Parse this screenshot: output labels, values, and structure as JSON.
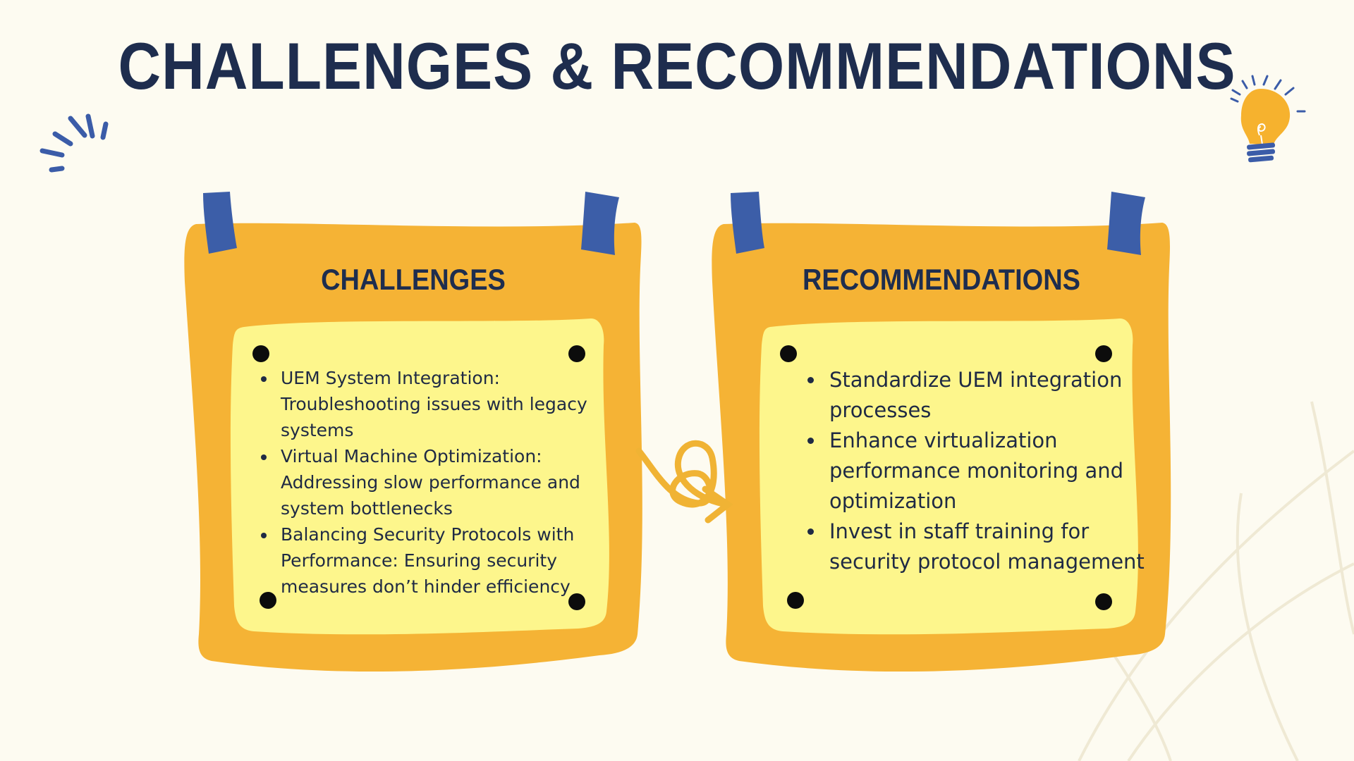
{
  "slide": {
    "title": "CHALLENGES & RECOMMENDATIONS"
  },
  "challenges": {
    "title": "CHALLENGES",
    "items": [
      "UEM System Integration: Troubleshooting issues with legacy systems",
      "Virtual Machine Optimization: Addressing slow performance and system bottlenecks",
      "Balancing Security Protocols with Performance: Ensuring security measures don’t hinder efficiency"
    ]
  },
  "recommendations": {
    "title": "RECOMMENDATIONS",
    "items": [
      "Standardize UEM integration processes",
      "Enhance virtualization performance monitoring and optimization",
      "Invest in staff training for security protocol management"
    ]
  },
  "colors": {
    "background": "#fdfbf1",
    "board_orange": "#f5b335",
    "note_yellow": "#fdf68c",
    "tape_blue": "#3c5ea8",
    "title_navy": "#1e2d4e",
    "doodle_line": "#efe9d4"
  },
  "icons": {
    "top_left": "sparkle-lines-icon",
    "top_right": "lightbulb-icon",
    "connector": "curly-arrow-icon"
  }
}
